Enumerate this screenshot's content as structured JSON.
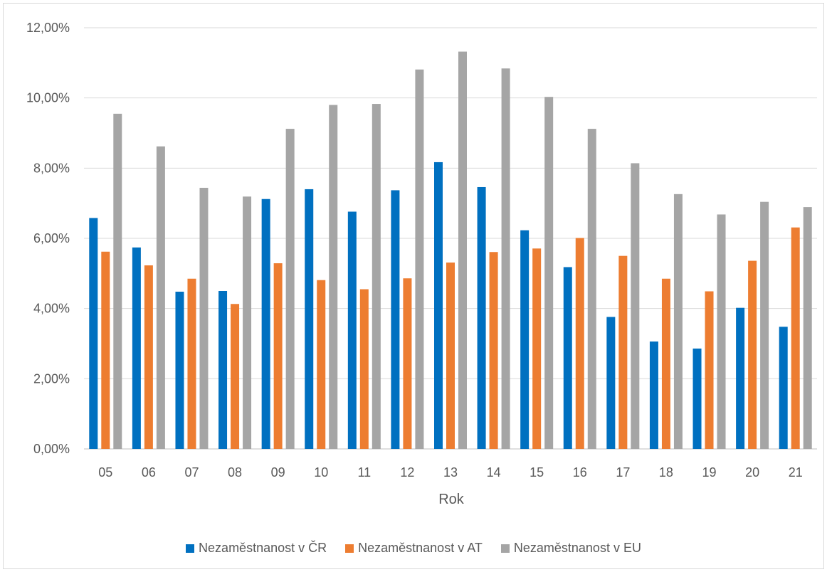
{
  "chart_data": {
    "type": "bar",
    "title": "",
    "xlabel": "Rok",
    "ylabel": "",
    "ylim": [
      0,
      0.12
    ],
    "yticks": [
      {
        "value": 0.0,
        "label": "0,00%"
      },
      {
        "value": 0.02,
        "label": "2,00%"
      },
      {
        "value": 0.04,
        "label": "4,00%"
      },
      {
        "value": 0.06,
        "label": "6,00%"
      },
      {
        "value": 0.08,
        "label": "8,00%"
      },
      {
        "value": 0.1,
        "label": "10,00%"
      },
      {
        "value": 0.12,
        "label": "12,00%"
      }
    ],
    "grid": true,
    "legend_position": "bottom",
    "categories": [
      "05",
      "06",
      "07",
      "08",
      "09",
      "10",
      "11",
      "12",
      "13",
      "14",
      "15",
      "16",
      "17",
      "18",
      "19",
      "20",
      "21"
    ],
    "series": [
      {
        "name": "Nezaměstnanost v ČR",
        "color": "#0070C0",
        "values": [
          0.0658,
          0.0574,
          0.0448,
          0.045,
          0.0712,
          0.074,
          0.0676,
          0.0737,
          0.0817,
          0.0746,
          0.0623,
          0.0518,
          0.0376,
          0.0306,
          0.0286,
          0.0402,
          0.0348
        ]
      },
      {
        "name": "Nezaměstnanost v AT",
        "color": "#ED7D31",
        "values": [
          0.0562,
          0.0523,
          0.0485,
          0.0413,
          0.0529,
          0.0481,
          0.0455,
          0.0486,
          0.0531,
          0.0561,
          0.0571,
          0.0601,
          0.055,
          0.0485,
          0.0449,
          0.0536,
          0.0631
        ]
      },
      {
        "name": "Nezaměstnanost v EU",
        "color": "#A5A5A5",
        "values": [
          0.0955,
          0.0862,
          0.0744,
          0.0719,
          0.0912,
          0.098,
          0.0983,
          0.1081,
          0.1132,
          0.1084,
          0.1003,
          0.0912,
          0.0814,
          0.0726,
          0.0668,
          0.0704,
          0.0689
        ]
      }
    ]
  }
}
